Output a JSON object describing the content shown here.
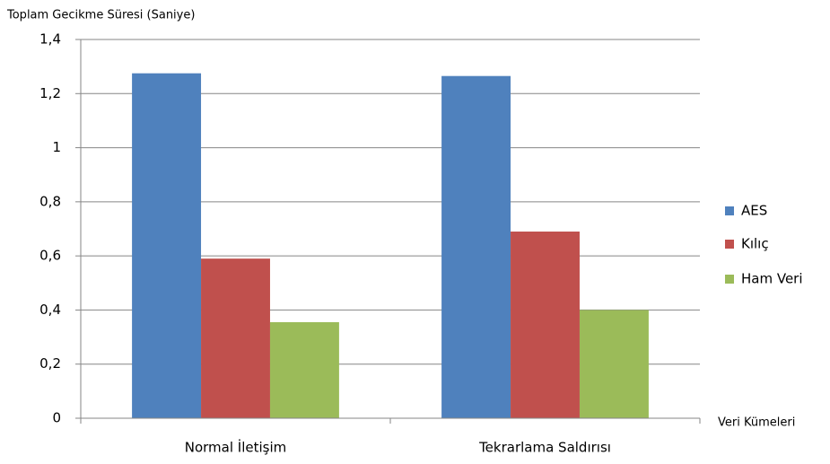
{
  "chart_data": {
    "type": "bar",
    "y_axis_label": "Toplam Gecikme Süresi (Saniye)",
    "x_axis_label": "Veri Kümeleri",
    "categories": [
      "Normal İletişim",
      "Tekrarlama Saldırısı"
    ],
    "series": [
      {
        "name": "AES",
        "color": "#4f81bd",
        "values": [
          1.275,
          1.265
        ]
      },
      {
        "name": "Kılıç",
        "color": "#c0504d",
        "values": [
          0.59,
          0.69
        ]
      },
      {
        "name": "Ham Veri",
        "color": "#9bbb59",
        "values": [
          0.355,
          0.4
        ]
      }
    ],
    "ylim": [
      0,
      1.4
    ],
    "yticks": [
      0,
      {
        "value": 0.2,
        "label": "0,2"
      },
      {
        "value": 0.4,
        "label": "0,4"
      },
      {
        "value": 0.6,
        "label": "0,6"
      },
      {
        "value": 0.8,
        "label": "0,8"
      },
      1,
      {
        "value": 1.2,
        "label": "1,2"
      },
      {
        "value": 1.4,
        "label": "1,4"
      }
    ],
    "grid": true,
    "legend": "right"
  }
}
